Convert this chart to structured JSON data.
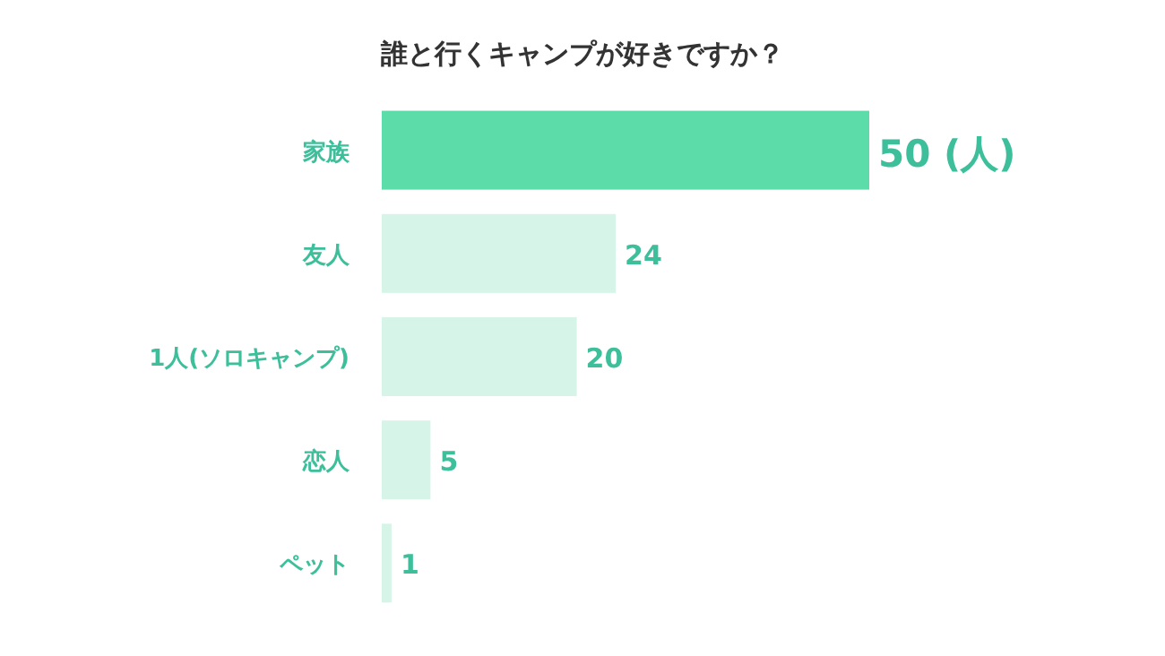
{
  "chart_data": {
    "type": "bar",
    "orientation": "horizontal",
    "title": "誰と行くキャンプが好きですか？",
    "categories": [
      "家族",
      "友人",
      "1人(ソロキャンプ)",
      "恋人",
      "ペット"
    ],
    "values": [
      50,
      24,
      20,
      5,
      1
    ],
    "colors": [
      "#5cdca8",
      "#d6f5e8",
      "#d6f5e8",
      "#d6f5e8",
      "#d6f5e8"
    ],
    "value_labels": [
      "50 (人)",
      "24",
      "20",
      "5",
      "1"
    ]
  }
}
